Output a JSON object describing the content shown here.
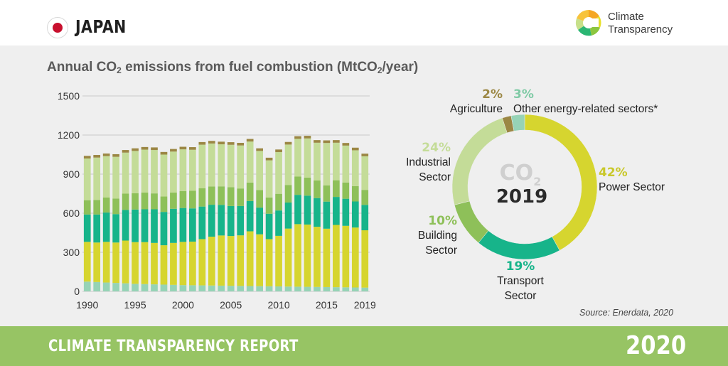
{
  "header": {
    "country": "JAPAN",
    "logo_line1": "Climate",
    "logo_line2": "Transparency"
  },
  "footer": {
    "report_title": "CLIMATE TRANSPARENCY REPORT",
    "year": "2020"
  },
  "source": "Source: Enerdata, 2020",
  "colors": {
    "power": "#d6d52f",
    "transport": "#17b48a",
    "building": "#8ec059",
    "industrial": "#c4dc98",
    "agriculture": "#9b8744",
    "other": "#96d3b6",
    "footer": "#97c464",
    "flag_red": "#c8102e"
  },
  "chart_data": [
    {
      "type": "bar",
      "stacked": true,
      "title": "Annual CO2 emissions from fuel combustion (MtCO2/year)",
      "title_parts": [
        "Annual CO",
        "2",
        " emissions from fuel combustion (MtCO",
        "2",
        "/year)"
      ],
      "ylim": [
        0,
        1500
      ],
      "yticks": [
        0,
        300,
        600,
        900,
        1200,
        1500
      ],
      "grid": true,
      "categories": [
        1990,
        1991,
        1992,
        1993,
        1994,
        1995,
        1996,
        1997,
        1998,
        1999,
        2000,
        2001,
        2002,
        2003,
        2004,
        2005,
        2006,
        2007,
        2008,
        2009,
        2010,
        2011,
        2012,
        2013,
        2014,
        2015,
        2016,
        2017,
        2018,
        2019
      ],
      "xtick_labels": [
        "1990",
        "1995",
        "2000",
        "2005",
        "2010",
        "2015",
        "2019"
      ],
      "series": [
        {
          "key": "other",
          "values": [
            75,
            72,
            68,
            65,
            62,
            58,
            56,
            54,
            52,
            50,
            48,
            47,
            46,
            45,
            44,
            43,
            42,
            41,
            40,
            39,
            38,
            37,
            36,
            35,
            34,
            33,
            32,
            31,
            30,
            29
          ]
        },
        {
          "key": "power",
          "values": [
            305,
            303,
            312,
            310,
            328,
            320,
            322,
            318,
            302,
            322,
            332,
            335,
            355,
            375,
            385,
            382,
            388,
            420,
            398,
            362,
            388,
            445,
            480,
            478,
            462,
            448,
            478,
            472,
            460,
            440
          ]
        },
        {
          "key": "transport",
          "values": [
            210,
            215,
            225,
            218,
            235,
            250,
            252,
            258,
            256,
            262,
            260,
            255,
            250,
            245,
            235,
            230,
            225,
            232,
            205,
            195,
            195,
            200,
            225,
            222,
            220,
            208,
            215,
            208,
            200,
            195
          ]
        },
        {
          "key": "building",
          "values": [
            110,
            112,
            115,
            120,
            125,
            125,
            128,
            122,
            118,
            124,
            130,
            135,
            140,
            140,
            142,
            145,
            135,
            142,
            135,
            125,
            128,
            135,
            140,
            138,
            135,
            125,
            128,
            125,
            118,
            115
          ]
        },
        {
          "key": "industrial",
          "values": [
            320,
            325,
            318,
            320,
            315,
            325,
            330,
            333,
            322,
            315,
            320,
            315,
            335,
            330,
            323,
            325,
            330,
            315,
            300,
            285,
            320,
            310,
            290,
            301,
            290,
            325,
            288,
            283,
            275,
            258
          ]
        },
        {
          "key": "agriculture",
          "values": [
            20,
            20,
            20,
            20,
            20,
            20,
            20,
            20,
            20,
            20,
            20,
            20,
            20,
            20,
            20,
            20,
            20,
            20,
            20,
            20,
            20,
            20,
            20,
            20,
            20,
            20,
            20,
            20,
            20,
            20
          ]
        }
      ]
    },
    {
      "type": "pie",
      "donut": true,
      "center_label": "CO2",
      "center_label_parts": [
        "CO",
        "2"
      ],
      "center_year": "2019",
      "slices": [
        {
          "key": "power",
          "percent": 42,
          "pct_label": "42%",
          "label_lines": [
            "Power Sector"
          ]
        },
        {
          "key": "transport",
          "percent": 19,
          "pct_label": "19%",
          "label_lines": [
            "Transport",
            "Sector"
          ]
        },
        {
          "key": "building",
          "percent": 10,
          "pct_label": "10%",
          "label_lines": [
            "Building",
            "Sector"
          ]
        },
        {
          "key": "industrial",
          "percent": 24,
          "pct_label": "24%",
          "label_lines": [
            "Industrial",
            "Sector"
          ]
        },
        {
          "key": "agriculture",
          "percent": 2,
          "pct_label": "2%",
          "label_lines": [
            "Agriculture"
          ]
        },
        {
          "key": "other",
          "percent": 3,
          "pct_label": "3%",
          "label_lines": [
            "Other energy-related sectors*"
          ]
        }
      ]
    }
  ]
}
